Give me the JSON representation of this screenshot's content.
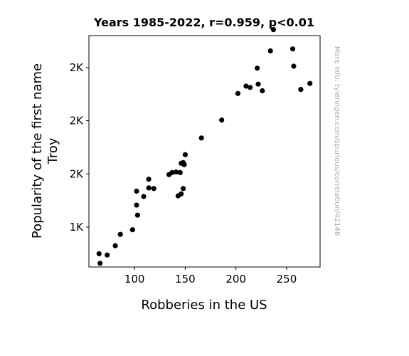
{
  "chart_data": {
    "type": "scatter",
    "title": "Years 1985-2022, r=0.959, p<0.01",
    "xlabel": "Robberies in the US",
    "ylabel": [
      "Popularity of the first name",
      "Troy"
    ],
    "side_note": "More info: tylervigen.com/spurious/correlation/42146",
    "xlim": [
      55,
      283
    ],
    "ylim": [
      1000,
      2740
    ],
    "x_ticks": [
      {
        "value": 100,
        "label": "100"
      },
      {
        "value": 150,
        "label": "150"
      },
      {
        "value": 200,
        "label": "200"
      },
      {
        "value": 250,
        "label": "250"
      }
    ],
    "y_ticks": [
      {
        "value": 1300,
        "label": "1K"
      },
      {
        "value": 1700,
        "label": "2K"
      },
      {
        "value": 2100,
        "label": "2K"
      },
      {
        "value": 2500,
        "label": "2K"
      }
    ],
    "marker_color": "#000000",
    "points": [
      {
        "x": 65,
        "y": 1100
      },
      {
        "x": 66,
        "y": 1028
      },
      {
        "x": 73,
        "y": 1090
      },
      {
        "x": 81,
        "y": 1160
      },
      {
        "x": 86,
        "y": 1245
      },
      {
        "x": 98,
        "y": 1280
      },
      {
        "x": 102,
        "y": 1570
      },
      {
        "x": 102,
        "y": 1465
      },
      {
        "x": 103,
        "y": 1390
      },
      {
        "x": 109,
        "y": 1530
      },
      {
        "x": 114,
        "y": 1660
      },
      {
        "x": 114,
        "y": 1595
      },
      {
        "x": 119,
        "y": 1590
      },
      {
        "x": 134,
        "y": 1695
      },
      {
        "x": 137,
        "y": 1710
      },
      {
        "x": 141,
        "y": 1715
      },
      {
        "x": 143,
        "y": 1535
      },
      {
        "x": 145,
        "y": 1710
      },
      {
        "x": 146,
        "y": 1780
      },
      {
        "x": 146,
        "y": 1550
      },
      {
        "x": 148,
        "y": 1590
      },
      {
        "x": 148,
        "y": 1785
      },
      {
        "x": 149,
        "y": 1770
      },
      {
        "x": 150,
        "y": 1845
      },
      {
        "x": 166,
        "y": 1970
      },
      {
        "x": 186,
        "y": 2105
      },
      {
        "x": 202,
        "y": 2305
      },
      {
        "x": 210,
        "y": 2360
      },
      {
        "x": 214,
        "y": 2350
      },
      {
        "x": 221,
        "y": 2495
      },
      {
        "x": 222,
        "y": 2375
      },
      {
        "x": 226,
        "y": 2325
      },
      {
        "x": 234,
        "y": 2625
      },
      {
        "x": 237,
        "y": 2785
      },
      {
        "x": 256,
        "y": 2640
      },
      {
        "x": 257,
        "y": 2510
      },
      {
        "x": 264,
        "y": 2335
      },
      {
        "x": 273,
        "y": 2380
      }
    ]
  }
}
